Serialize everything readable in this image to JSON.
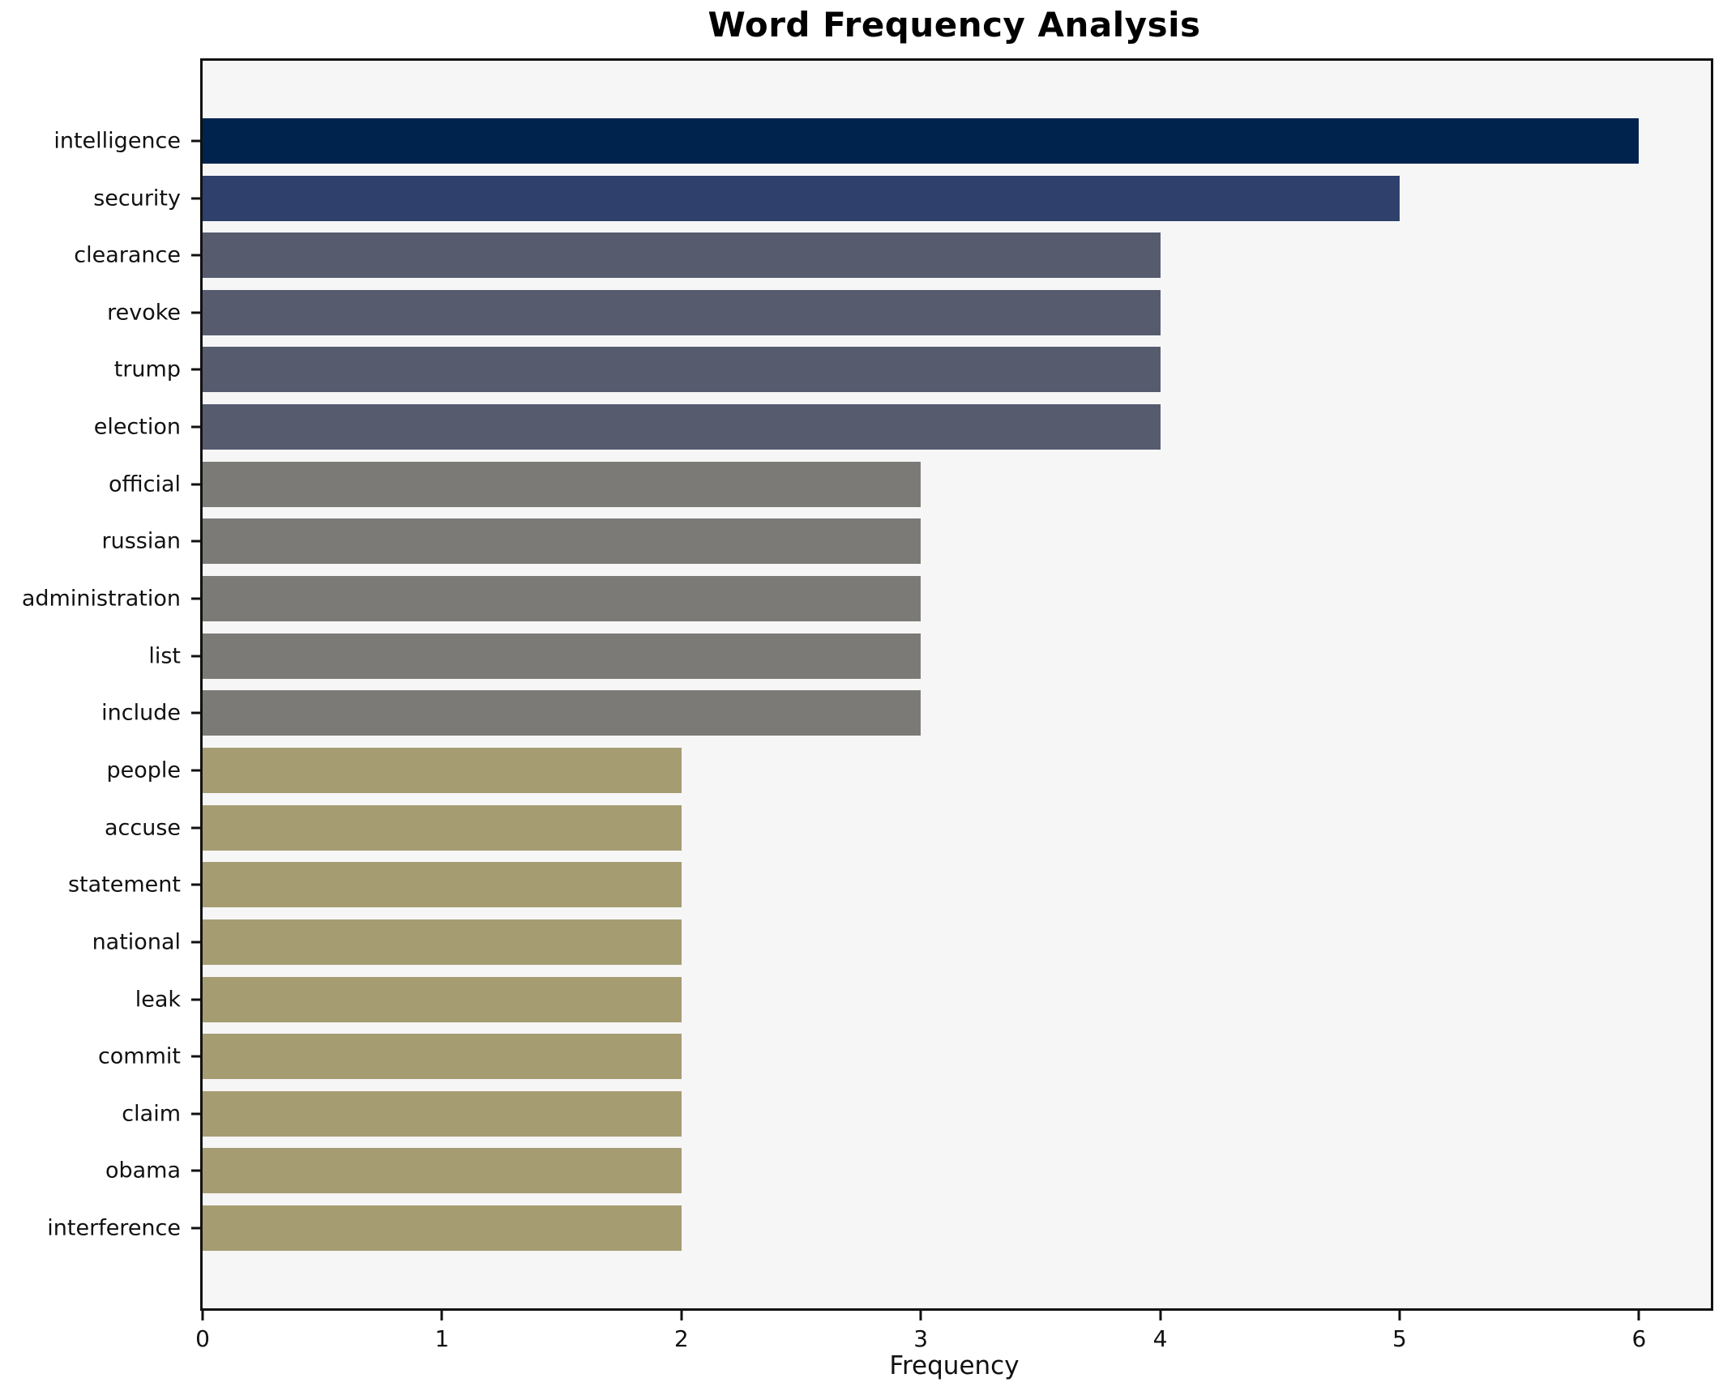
{
  "chart_data": {
    "type": "bar",
    "orientation": "horizontal",
    "title": "Word Frequency Analysis",
    "xlabel": "Frequency",
    "ylabel": "",
    "categories": [
      "intelligence",
      "security",
      "clearance",
      "revoke",
      "trump",
      "election",
      "official",
      "russian",
      "administration",
      "list",
      "include",
      "people",
      "accuse",
      "statement",
      "national",
      "leak",
      "commit",
      "claim",
      "obama",
      "interference"
    ],
    "values": [
      6,
      5,
      4,
      4,
      4,
      4,
      3,
      3,
      3,
      3,
      3,
      2,
      2,
      2,
      2,
      2,
      2,
      2,
      2,
      2
    ],
    "xlim": [
      0,
      6.3
    ],
    "x_ticks": [
      0,
      1,
      2,
      3,
      4,
      5,
      6
    ],
    "grid": false,
    "legend": null,
    "colors": {
      "value_6": "#00234e",
      "value_5": "#2e406b",
      "value_4": "#565c6e",
      "value_3": "#7b7a76",
      "value_2": "#a69c72",
      "plot_background": "#f6f6f7",
      "figure_background": "#ffffff",
      "spine": "#111111"
    }
  }
}
